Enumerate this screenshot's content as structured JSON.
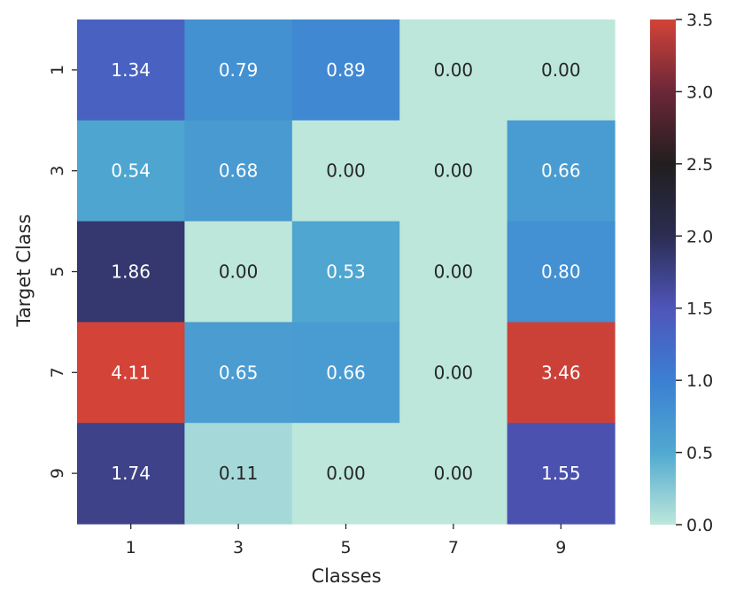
{
  "chart_data": {
    "type": "heatmap",
    "title": "",
    "xlabel": "Classes",
    "ylabel": "Target Class",
    "x_categories": [
      "1",
      "3",
      "5",
      "7",
      "9"
    ],
    "y_categories": [
      "1",
      "3",
      "5",
      "7",
      "9"
    ],
    "values": [
      [
        1.34,
        0.79,
        0.89,
        0.0,
        0.0
      ],
      [
        0.54,
        0.68,
        0.0,
        0.0,
        0.66
      ],
      [
        1.86,
        0.0,
        0.53,
        0.0,
        0.8
      ],
      [
        4.11,
        0.65,
        0.66,
        0.0,
        3.46
      ],
      [
        1.74,
        0.11,
        0.0,
        0.0,
        1.55
      ]
    ],
    "cell_labels": [
      [
        "1.34",
        "0.79",
        "0.89",
        "0.00",
        "0.00"
      ],
      [
        "0.54",
        "0.68",
        "0.00",
        "0.00",
        "0.66"
      ],
      [
        "1.86",
        "0.00",
        "0.53",
        "0.00",
        "0.80"
      ],
      [
        "4.11",
        "0.65",
        "0.66",
        "0.00",
        "3.46"
      ],
      [
        "1.74",
        "0.11",
        "0.00",
        "0.00",
        "1.55"
      ]
    ],
    "colorbar": {
      "vmin": 0.0,
      "vmax": 3.5,
      "ticks": [
        0.0,
        0.5,
        1.0,
        1.5,
        2.0,
        2.5,
        3.0,
        3.5
      ],
      "tick_labels": [
        "0.0",
        "0.5",
        "1.0",
        "1.5",
        "2.0",
        "2.5",
        "3.0",
        "3.5"
      ],
      "colormap": "icefire",
      "colors": [
        "#bde7db",
        "#50a9d0",
        "#3b7fd3",
        "#4f55b9",
        "#2b2d52",
        "#211e1f",
        "#6b2738",
        "#d34338"
      ]
    },
    "grid": false
  }
}
